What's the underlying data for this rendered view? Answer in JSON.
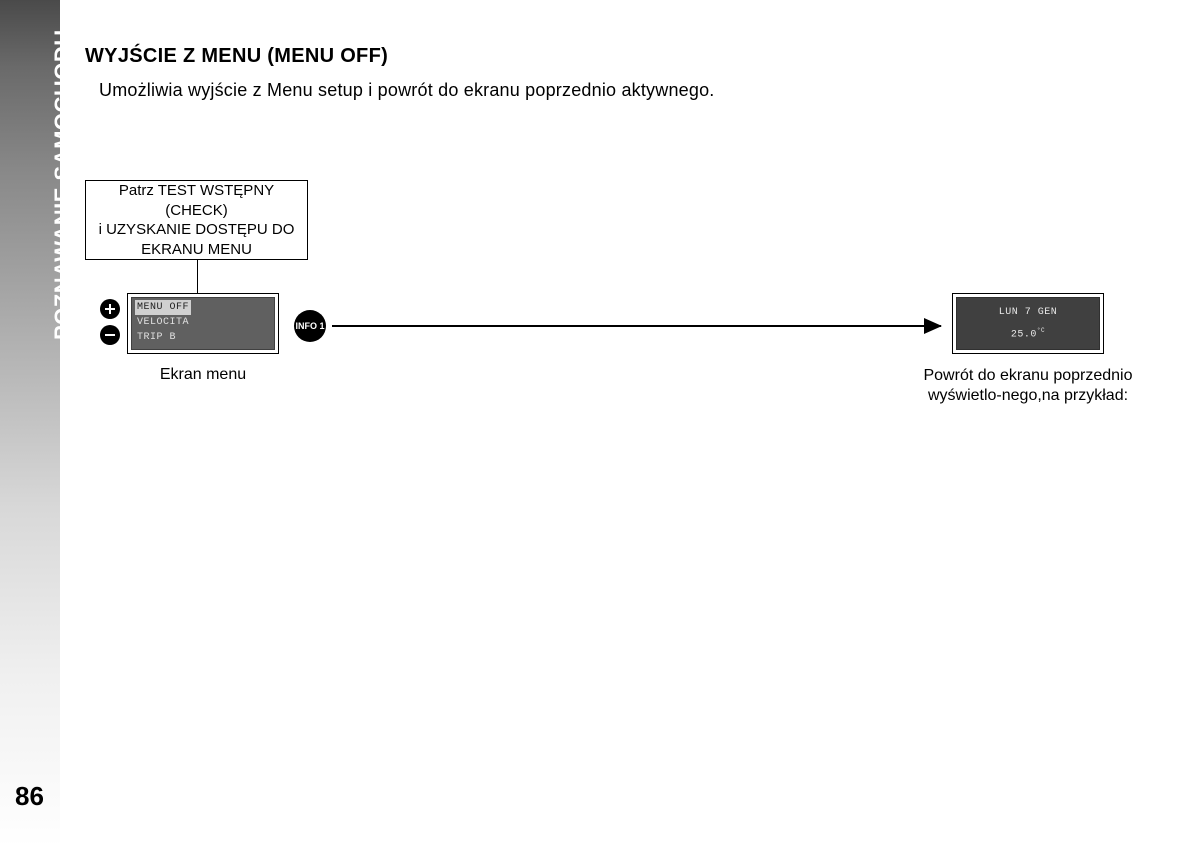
{
  "sidebar": {
    "section_title": "POZNAWANIE SAMOCHODU",
    "page_number": "86"
  },
  "content": {
    "heading": "WYJŚCIE Z MENU (MENU OFF)",
    "description": "Umożliwia wyjście z Menu setup i powrót do ekranu poprzednio aktywnego."
  },
  "diagram": {
    "info_box": {
      "line1": "Patrz TEST WSTĘPNY (CHECK)",
      "line2": "i UZYSKANIE DOSTĘPU DO",
      "line3": "EKRANU MENU"
    },
    "menu_screen": {
      "item1": "MENU OFF",
      "item2": "VELOCITA",
      "item3": "TRIP B",
      "label": "Ekran menu"
    },
    "info_badge": "INFO 1",
    "result_screen": {
      "line1": "LUN 7 GEN",
      "temp_value": "25.0",
      "temp_unit": "°C",
      "label": "Powrót do ekranu poprzednio wyświetlo-nego,na przykład:"
    }
  },
  "colors": {
    "screen_bg_light": "#606060",
    "screen_bg_dark": "#404040",
    "text_light": "#e0e0e0",
    "highlight_bg": "#d0d0d0"
  }
}
